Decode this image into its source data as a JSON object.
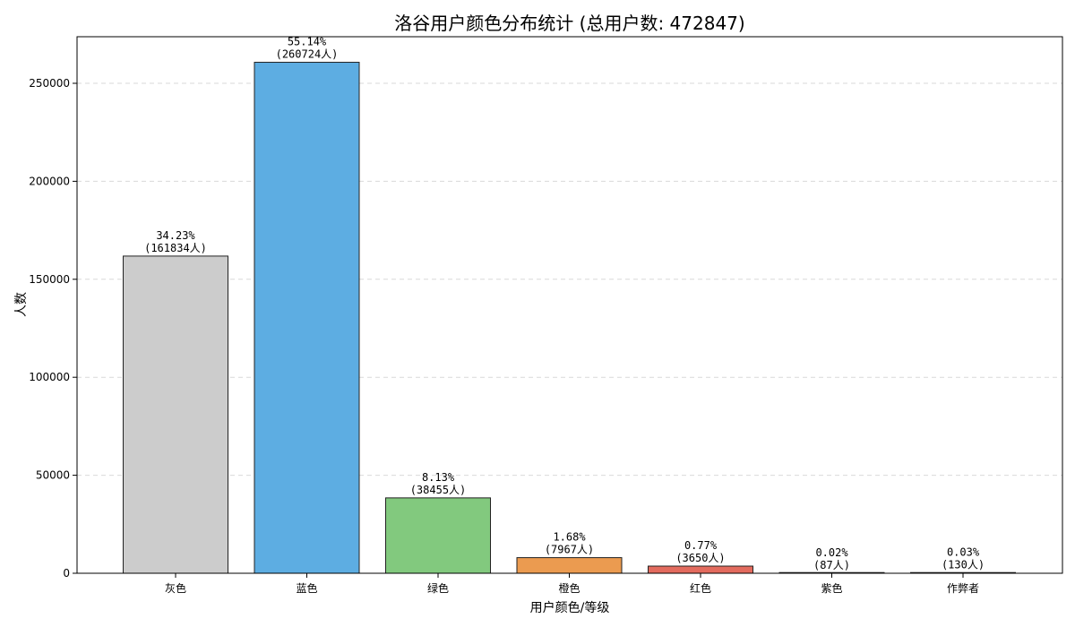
{
  "chart_data": {
    "type": "bar",
    "title": "洛谷用户颜色分布统计 (总用户数: 472847)",
    "xlabel": "用户颜色/等级",
    "ylabel": "人数",
    "categories": [
      "灰色",
      "蓝色",
      "绿色",
      "橙色",
      "红色",
      "紫色",
      "作弊者"
    ],
    "values": [
      161834,
      260724,
      38455,
      7967,
      3650,
      87,
      130
    ],
    "percent_labels": [
      "34.23%",
      "55.14%",
      "8.13%",
      "1.68%",
      "0.77%",
      "0.02%",
      "0.03%"
    ],
    "count_labels": [
      "(161834人)",
      "(260724人)",
      "(38455人)",
      "(7967人)",
      "(3650人)",
      "(87人)",
      "(130人)"
    ],
    "colors": [
      "#cccccc",
      "#5dade2",
      "#82c97e",
      "#eb9b50",
      "#e36b5e",
      "#9b59b6",
      "#333333"
    ],
    "ylim": [
      0,
      273760
    ],
    "yticks": [
      0,
      50000,
      100000,
      150000,
      200000,
      250000
    ],
    "ytick_labels": [
      "0",
      "50000",
      "100000",
      "150000",
      "200000",
      "250000"
    ],
    "grid": true
  }
}
